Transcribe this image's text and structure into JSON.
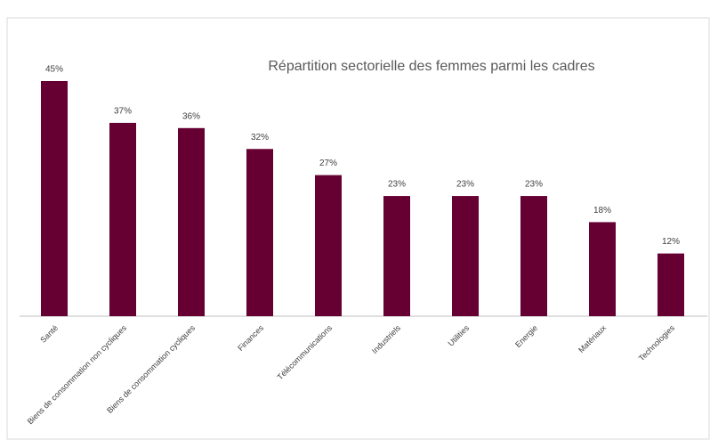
{
  "chart_data": {
    "type": "bar",
    "title": "Répartition sectorielle des femmes parmi les cadres",
    "categories": [
      "Santé",
      "Biens de consommation non cycliques",
      "Biens de consommation cycliques",
      "Finances",
      "Télécommunications",
      "Industriels",
      "Utilities",
      "Energie",
      "Matériaux",
      "Technologies"
    ],
    "values": [
      45,
      37,
      36,
      32,
      27,
      23,
      23,
      23,
      18,
      12
    ],
    "value_labels": [
      "45%",
      "37%",
      "36%",
      "32%",
      "27%",
      "23%",
      "23%",
      "23%",
      "18%",
      "12%"
    ],
    "color": "#660033"
  }
}
